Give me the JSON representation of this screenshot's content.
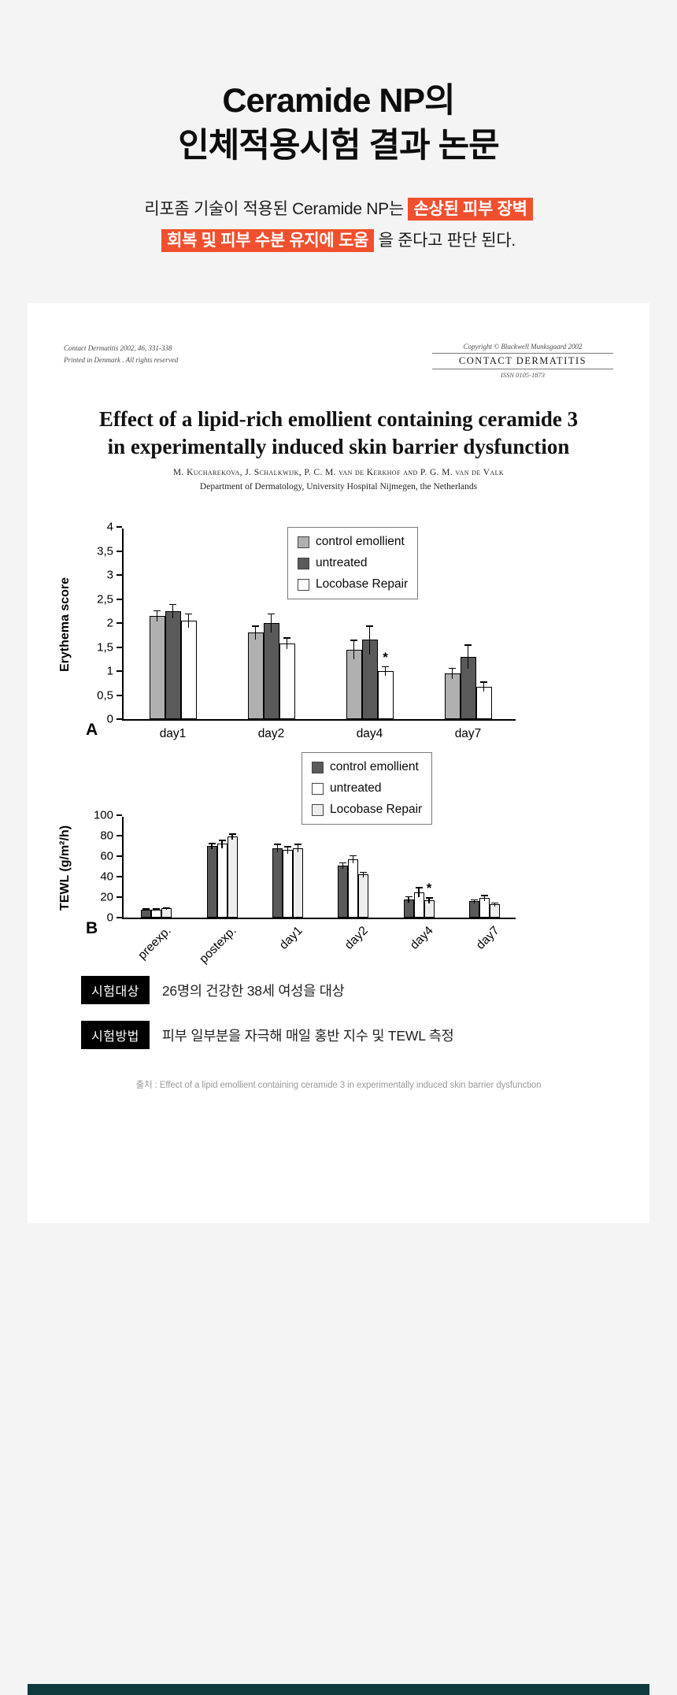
{
  "colors": {
    "highlight": "#f0502e",
    "bottom_strip": "#0f3a3d",
    "background": "#f4f4f4",
    "card": "#ffffff"
  },
  "header": {
    "title_line1": "Ceramide NP의",
    "title_line2": "인체적용시험 결과 논문",
    "subtitle_pre": "리포좀 기술이 적용된 Ceramide NP는 ",
    "subtitle_highlight1": "손상된 피부 장벽",
    "subtitle_highlight2": "회복 및 피부 수분 유지에 도움",
    "subtitle_post": "을 준다고 판단 된다."
  },
  "paper": {
    "meta_left_line1": "Contact Dermatitis 2002, 46, 331-338",
    "meta_left_line2": "Printed in Denmark . All rights reserved",
    "copyright": "Copyright © Blackwell Munksgaard 2002",
    "journal_name": "CONTACT DERMATITIS",
    "issn": "ISSN 0105-1873",
    "title_line1": "Effect of a lipid-rich emollient containing ceramide 3",
    "title_line2": "in experimentally induced skin barrier dysfunction",
    "authors": "M. Kucharekova, J. Schalkwijk, P. C. M. van de Kerkhof and P. G. M. van de Valk",
    "affiliation": "Department of Dermatology, University Hospital Nijmegen, the Netherlands"
  },
  "chart_data": [
    {
      "id": "A",
      "type": "bar",
      "panel_label": "A",
      "ylabel": "Erythema score",
      "ylim": [
        0,
        4
      ],
      "ytick_values": [
        0,
        0.5,
        1,
        1.5,
        2,
        2.5,
        3,
        3.5,
        4
      ],
      "ytick_labels": [
        "0",
        "0,5",
        "1",
        "1,5",
        "2",
        "2,5",
        "3",
        "3,5",
        "4"
      ],
      "categories": [
        "day1",
        "day2",
        "day4",
        "day7"
      ],
      "rotate_categories": false,
      "legend_position": "top-right",
      "grid": false,
      "series": [
        {
          "name": "control emollient",
          "color": "#b0b0b0",
          "values": [
            2.15,
            1.8,
            1.45,
            0.95
          ],
          "errors": [
            0.12,
            0.15,
            0.2,
            0.12
          ]
        },
        {
          "name": "untreated",
          "color": "#5a5a5a",
          "values": [
            2.25,
            2.0,
            1.65,
            1.3
          ],
          "errors": [
            0.15,
            0.2,
            0.3,
            0.25
          ]
        },
        {
          "name": "Locobase Repair",
          "color": "#ffffff",
          "values": [
            2.05,
            1.58,
            1.0,
            0.68
          ],
          "errors": [
            0.15,
            0.12,
            0.1,
            0.1
          ]
        }
      ],
      "annotations": [
        {
          "text": "*",
          "category": "day4",
          "series": "Locobase Repair"
        }
      ]
    },
    {
      "id": "B",
      "type": "bar",
      "panel_label": "B",
      "ylabel": "TEWL (g/m²/h)",
      "ylim": [
        0,
        100
      ],
      "ytick_values": [
        0,
        20,
        40,
        60,
        80,
        100
      ],
      "ytick_labels": [
        "0",
        "20",
        "40",
        "60",
        "80",
        "100"
      ],
      "categories": [
        "preexp.",
        "postexp.",
        "day1",
        "day2",
        "day4",
        "day7"
      ],
      "rotate_categories": true,
      "legend_position": "top-right",
      "grid": false,
      "series": [
        {
          "name": "control emollient",
          "color": "#5a5a5a",
          "values": [
            8,
            70,
            68,
            51,
            18,
            16
          ],
          "errors": [
            1,
            3,
            4,
            3,
            3,
            2
          ]
        },
        {
          "name": "untreated",
          "color": "#ffffff",
          "values": [
            8,
            72,
            66,
            57,
            25,
            19
          ],
          "errors": [
            1,
            4,
            4,
            4,
            5,
            3
          ]
        },
        {
          "name": "Locobase Repair",
          "color": "#ededed",
          "values": [
            9,
            79,
            68,
            42,
            17,
            13
          ],
          "errors": [
            1,
            3,
            4,
            3,
            3,
            2
          ]
        }
      ],
      "annotations": [
        {
          "text": "*",
          "category": "day4",
          "series": "Locobase Repair"
        }
      ]
    }
  ],
  "info": {
    "rows": [
      {
        "label": "시험대상",
        "text": "26명의 건강한 38세 여성을 대상"
      },
      {
        "label": "시험방법",
        "text": "피부 일부분을 자극해 매일 홍반 지수 및 TEWL 측정"
      }
    ],
    "source": "출처 : Effect of a lipid emollient containing ceramide 3 in experimentally induced skin barrier dysfunction"
  }
}
